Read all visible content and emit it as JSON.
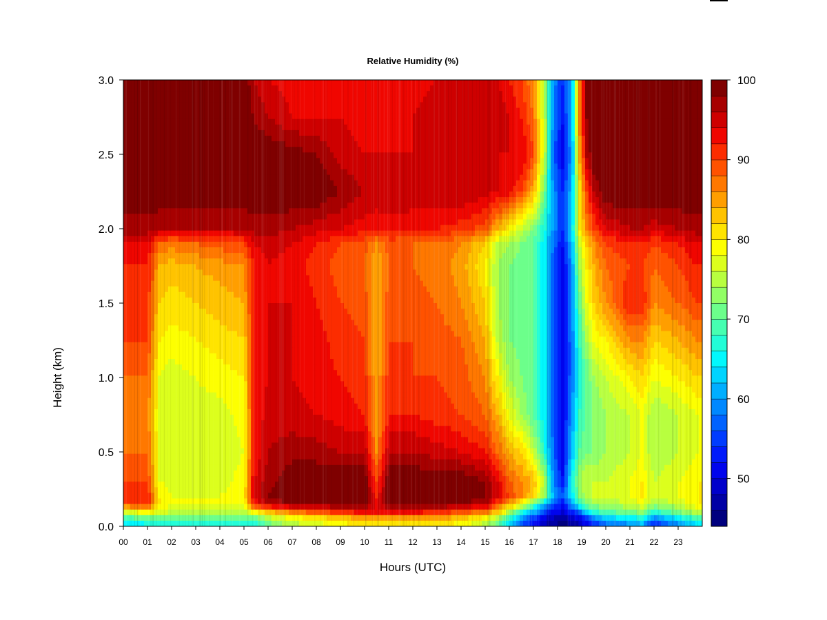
{
  "chart_data": {
    "type": "heatmap",
    "title": "Relative Humidity (%)",
    "xlabel": "Hours (UTC)",
    "ylabel": "Height (km)",
    "xlim": [
      0,
      24
    ],
    "ylim": [
      0.0,
      3.0
    ],
    "x_ticks": [
      "00",
      "01",
      "02",
      "03",
      "04",
      "05",
      "06",
      "07",
      "08",
      "09",
      "10",
      "11",
      "12",
      "13",
      "14",
      "15",
      "16",
      "17",
      "18",
      "19",
      "20",
      "21",
      "22",
      "23"
    ],
    "y_ticks": [
      "0.0",
      "0.5",
      "1.0",
      "1.5",
      "2.0",
      "2.5",
      "3.0"
    ],
    "colorbar": {
      "min": 44,
      "max": 100,
      "levels": 28,
      "tick_values": [
        50,
        60,
        70,
        80,
        90,
        100
      ],
      "tick_labels": [
        "50",
        "60",
        "70",
        "80",
        "90",
        "100"
      ],
      "colors": [
        "#00007f",
        "#0000b5",
        "#0000eb",
        "#0020ff",
        "#0056ff",
        "#008cff",
        "#00c2ff",
        "#00f8ff",
        "#2effc9",
        "#64ff93",
        "#9aff5d",
        "#d0ff27",
        "#ffff00",
        "#ffd700",
        "#ffa200",
        "#ff6c00",
        "#ff3600",
        "#ee0000",
        "#b80000",
        "#7f0000"
      ]
    },
    "heights_km": [
      0.0,
      0.05,
      0.1,
      0.15,
      0.2,
      0.3,
      0.5,
      0.75,
      1.0,
      1.25,
      1.5,
      1.75,
      1.9,
      2.0,
      2.25,
      2.5,
      2.75,
      3.0
    ],
    "hours": [
      0.0,
      1.0,
      1.5,
      2.0,
      3.0,
      4.0,
      5.0,
      5.4,
      6.0,
      7.0,
      8.0,
      9.0,
      10.0,
      10.5,
      11.0,
      12.0,
      13.0,
      14.0,
      15.0,
      15.5,
      16.0,
      16.5,
      17.0,
      17.5,
      17.8,
      18.2,
      18.6,
      18.9,
      19.2,
      19.5,
      20.0,
      21.0,
      21.5,
      22.0,
      23.0,
      23.8
    ],
    "rh_percent": [
      [
        62,
        64,
        64,
        64,
        64,
        64,
        64,
        64,
        70,
        74,
        76,
        78,
        80,
        80,
        80,
        80,
        80,
        78,
        74,
        70,
        62,
        56,
        50,
        48,
        46,
        45,
        46,
        48,
        50,
        52,
        56,
        58,
        60,
        52,
        58,
        62
      ],
      [
        68,
        70,
        70,
        70,
        70,
        70,
        70,
        70,
        74,
        78,
        80,
        82,
        84,
        84,
        84,
        84,
        84,
        82,
        78,
        74,
        66,
        60,
        54,
        50,
        48,
        46,
        48,
        50,
        54,
        58,
        62,
        64,
        66,
        58,
        64,
        68
      ],
      [
        78,
        80,
        78,
        76,
        76,
        76,
        76,
        80,
        84,
        88,
        90,
        92,
        94,
        94,
        94,
        94,
        92,
        90,
        88,
        84,
        76,
        68,
        62,
        56,
        52,
        50,
        54,
        58,
        64,
        68,
        70,
        72,
        74,
        68,
        72,
        76
      ],
      [
        90,
        92,
        80,
        78,
        78,
        78,
        78,
        92,
        96,
        98,
        98,
        100,
        100,
        92,
        100,
        100,
        100,
        98,
        96,
        90,
        84,
        78,
        70,
        62,
        56,
        52,
        60,
        68,
        72,
        74,
        74,
        76,
        78,
        74,
        76,
        80
      ],
      [
        92,
        92,
        80,
        78,
        78,
        78,
        80,
        94,
        98,
        100,
        100,
        100,
        100,
        92,
        100,
        100,
        100,
        100,
        98,
        94,
        90,
        86,
        82,
        72,
        62,
        56,
        64,
        72,
        74,
        76,
        76,
        78,
        80,
        76,
        78,
        80
      ],
      [
        90,
        90,
        78,
        77,
        77,
        77,
        79,
        94,
        97,
        100,
        100,
        100,
        100,
        90,
        100,
        100,
        100,
        100,
        98,
        94,
        88,
        86,
        84,
        74,
        60,
        52,
        66,
        74,
        76,
        76,
        76,
        78,
        80,
        76,
        78,
        80
      ],
      [
        88,
        88,
        77,
        76,
        76,
        76,
        78,
        92,
        96,
        97,
        97,
        96,
        96,
        86,
        96,
        96,
        95,
        94,
        92,
        88,
        84,
        82,
        76,
        66,
        58,
        50,
        62,
        70,
        72,
        72,
        74,
        76,
        78,
        74,
        76,
        78
      ],
      [
        87,
        87,
        77,
        76,
        77,
        77,
        79,
        92,
        95,
        95,
        94,
        93,
        92,
        84,
        92,
        92,
        91,
        90,
        88,
        84,
        78,
        74,
        70,
        64,
        57,
        50,
        60,
        68,
        70,
        72,
        74,
        76,
        78,
        74,
        76,
        78
      ],
      [
        88,
        88,
        78,
        77,
        78,
        79,
        80,
        92,
        94,
        94,
        93,
        92,
        91,
        84,
        91,
        90,
        90,
        89,
        86,
        80,
        74,
        72,
        70,
        64,
        57,
        50,
        58,
        66,
        70,
        74,
        76,
        80,
        82,
        78,
        80,
        82
      ],
      [
        90,
        90,
        80,
        79,
        80,
        81,
        82,
        92,
        94,
        94,
        93,
        91,
        90,
        84,
        90,
        90,
        89,
        88,
        84,
        76,
        72,
        71,
        70,
        64,
        57,
        50,
        58,
        68,
        74,
        78,
        80,
        86,
        86,
        82,
        84,
        86
      ],
      [
        91,
        91,
        82,
        81,
        82,
        83,
        84,
        92,
        94,
        94,
        92,
        90,
        89,
        84,
        89,
        89,
        88,
        86,
        82,
        74,
        72,
        71,
        70,
        64,
        57,
        50,
        60,
        70,
        78,
        82,
        86,
        92,
        92,
        86,
        88,
        90
      ],
      [
        92,
        92,
        84,
        83,
        84,
        85,
        86,
        92,
        94,
        93,
        91,
        89,
        88,
        84,
        88,
        88,
        87,
        85,
        80,
        74,
        72,
        71,
        70,
        64,
        57,
        50,
        60,
        74,
        80,
        84,
        88,
        90,
        90,
        88,
        90,
        92
      ],
      [
        94,
        94,
        88,
        87,
        88,
        89,
        90,
        94,
        95,
        94,
        92,
        90,
        89,
        86,
        89,
        88,
        88,
        86,
        82,
        76,
        74,
        72,
        70,
        64,
        58,
        52,
        62,
        76,
        82,
        86,
        90,
        92,
        92,
        90,
        92,
        94
      ],
      [
        97,
        97,
        96,
        96,
        96,
        96,
        96,
        97,
        97,
        96,
        95,
        94,
        93,
        92,
        93,
        92,
        92,
        91,
        89,
        84,
        80,
        76,
        72,
        66,
        60,
        54,
        64,
        80,
        86,
        90,
        94,
        96,
        96,
        95,
        96,
        97
      ],
      [
        100,
        100,
        100,
        100,
        100,
        100,
        100,
        100,
        100,
        100,
        100,
        98,
        96,
        96,
        96,
        96,
        96,
        96,
        95,
        94,
        93,
        90,
        84,
        70,
        60,
        54,
        62,
        80,
        90,
        96,
        100,
        100,
        100,
        100,
        100,
        100
      ],
      [
        100,
        100,
        100,
        100,
        100,
        100,
        100,
        100,
        100,
        99,
        98,
        95,
        94,
        94,
        94,
        94,
        94,
        94,
        94,
        94,
        94,
        94,
        90,
        74,
        58,
        50,
        60,
        84,
        96,
        100,
        100,
        100,
        100,
        100,
        100,
        100
      ],
      [
        100,
        100,
        100,
        100,
        100,
        100,
        100,
        98,
        96,
        94,
        94,
        94,
        93,
        93,
        93,
        94,
        95,
        96,
        96,
        96,
        94,
        92,
        88,
        74,
        60,
        52,
        62,
        86,
        98,
        100,
        100,
        100,
        100,
        100,
        100,
        100
      ],
      [
        100,
        100,
        100,
        100,
        100,
        100,
        100,
        96,
        94,
        93,
        93,
        92,
        92,
        92,
        92,
        93,
        94,
        95,
        95,
        94,
        92,
        90,
        86,
        72,
        60,
        54,
        62,
        86,
        98,
        100,
        100,
        100,
        100,
        100,
        100,
        100
      ]
    ]
  }
}
